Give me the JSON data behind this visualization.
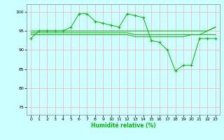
{
  "x": [
    0,
    1,
    2,
    3,
    4,
    5,
    6,
    7,
    8,
    9,
    10,
    11,
    12,
    13,
    14,
    15,
    16,
    17,
    18,
    19,
    20,
    21,
    22,
    23
  ],
  "y_main": [
    93,
    95,
    95,
    95,
    95,
    96,
    99.5,
    99.5,
    97.5,
    97,
    96.5,
    96,
    99.5,
    99,
    98.5,
    92.5,
    92,
    90,
    84.5,
    86,
    86,
    93,
    93,
    93
  ],
  "y_avg1": [
    95,
    95,
    95,
    95,
    95,
    95,
    95,
    95,
    95,
    95,
    95,
    95,
    95,
    95,
    95,
    95,
    95,
    95,
    95,
    95,
    95,
    95,
    95,
    96
  ],
  "y_avg2": [
    94.5,
    94.5,
    94.5,
    94.5,
    94.5,
    94.5,
    94.5,
    94.5,
    94.5,
    94.5,
    94.5,
    94.5,
    94.5,
    94,
    94,
    94,
    94,
    94,
    94,
    94,
    94,
    94,
    95,
    96
  ],
  "y_avg3": [
    94,
    94,
    94,
    94,
    94,
    94,
    94,
    94,
    94,
    94,
    94,
    94,
    94,
    93.5,
    93.5,
    93.5,
    93.5,
    93.5,
    93.5,
    93.5,
    94,
    94,
    94,
    94
  ],
  "line_color": "#00bb00",
  "bg_color": "#ccffff",
  "grid_color": "#ffaaaa",
  "xlabel": "Humidité relative (%)",
  "ylim": [
    73,
    102
  ],
  "xlim": [
    -0.5,
    23.5
  ],
  "yticks": [
    75,
    80,
    85,
    90,
    95,
    100
  ],
  "xticks": [
    0,
    1,
    2,
    3,
    4,
    5,
    6,
    7,
    8,
    9,
    10,
    11,
    12,
    13,
    14,
    15,
    16,
    17,
    18,
    19,
    20,
    21,
    22,
    23
  ]
}
